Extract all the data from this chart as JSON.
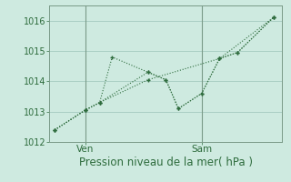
{
  "background_color": "#ceeae0",
  "grid_color": "#aacfc4",
  "line_color": "#2d6b3c",
  "marker_color": "#2d6b3c",
  "xlabel": "Pression niveau de la mer( hPa )",
  "ylim": [
    1012.0,
    1016.5
  ],
  "yticks": [
    1012,
    1013,
    1014,
    1015,
    1016
  ],
  "xlim": [
    0,
    13
  ],
  "ven_x": 2.0,
  "sam_x": 8.5,
  "line1_x": [
    0.3,
    2.0,
    2.8,
    3.5,
    5.5,
    6.5,
    7.2,
    8.5,
    9.5,
    10.5,
    12.5
  ],
  "line1_y": [
    1012.4,
    1013.05,
    1013.3,
    1014.8,
    1014.3,
    1014.05,
    1013.1,
    1013.6,
    1014.75,
    1014.95,
    1016.1
  ],
  "line2_x": [
    0.3,
    2.0,
    2.8,
    5.5,
    6.5,
    7.2,
    8.5,
    9.5,
    10.5,
    12.5
  ],
  "line2_y": [
    1012.4,
    1013.05,
    1013.3,
    1014.3,
    1014.05,
    1013.1,
    1013.6,
    1014.75,
    1014.95,
    1016.1
  ],
  "line3_x": [
    0.3,
    2.0,
    2.8,
    5.5,
    9.5,
    12.5
  ],
  "line3_y": [
    1012.4,
    1013.05,
    1013.3,
    1014.05,
    1014.75,
    1016.1
  ],
  "tick_label_color": "#2d6b3c",
  "xlabel_color": "#2d6b3c",
  "xlabel_fontsize": 8.5,
  "ytick_fontsize": 7,
  "xtick_fontsize": 7.5
}
